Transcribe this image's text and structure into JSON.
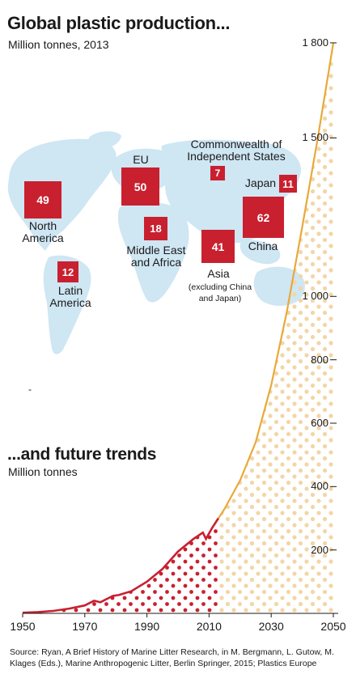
{
  "header": {
    "title": "Global plastic production...",
    "subtitle": "Million tonnes, 2013"
  },
  "regions": [
    {
      "name": "North America",
      "line1": "North",
      "line2": "America",
      "value": "49"
    },
    {
      "name": "Latin America",
      "line1": "Latin",
      "line2": "America",
      "value": "12"
    },
    {
      "name": "EU",
      "line1": "EU",
      "line2": "",
      "value": "50"
    },
    {
      "name": "Middle East and Africa",
      "line1": "Middle East",
      "line2": "and Africa",
      "value": "18"
    },
    {
      "name": "Commonwealth of Independent States",
      "line1": "Commonwealth of",
      "line2": "Independent States",
      "value": "7"
    },
    {
      "name": "Asia",
      "line1": "Asia",
      "line2": "(excluding China",
      "line3": "and Japan)",
      "value": "41"
    },
    {
      "name": "China",
      "line1": "China",
      "line2": "",
      "value": "62"
    },
    {
      "name": "Japan",
      "line1": "Japan",
      "line2": "",
      "value": "11"
    }
  ],
  "trends": {
    "title": "...and future trends",
    "subtitle": "Million tonnes"
  },
  "misc": {
    "dash": "-"
  },
  "colors": {
    "accent": "#c8202f",
    "projection": "#e8a93a",
    "map": "#cfe6f3"
  },
  "chart_data": {
    "type": "area",
    "ylim": [
      0,
      1850
    ],
    "xlim": [
      1950,
      2050
    ],
    "x_ticks": [
      "1950",
      "1970",
      "1990",
      "2010",
      "2030",
      "2050"
    ],
    "y_ticks": [
      "200",
      "400",
      "600",
      "800",
      "1 000",
      "1 500",
      "1 800"
    ],
    "y_tick_values": [
      200,
      400,
      600,
      800,
      1000,
      1500,
      1800
    ],
    "series": [
      {
        "style": "historical",
        "x": [
          1950,
          1955,
          1960,
          1965,
          1970,
          1973,
          1975,
          1977,
          1979,
          1981,
          1985,
          1990,
          1995,
          2000,
          2005,
          2008,
          2009,
          2011,
          2013
        ],
        "y": [
          2,
          4,
          8,
          15,
          25,
          40,
          35,
          45,
          55,
          58,
          70,
          100,
          140,
          195,
          235,
          255,
          235,
          270,
          300
        ]
      },
      {
        "style": "projection",
        "x": [
          2013,
          2015,
          2020,
          2025,
          2030,
          2035,
          2040,
          2045,
          2050
        ],
        "y": [
          300,
          330,
          420,
          540,
          720,
          950,
          1220,
          1500,
          1800
        ]
      }
    ]
  },
  "source": {
    "text": "Source: Ryan, A Brief History of Marine Litter Research, in M. Bergmann, L. Gutow, M. Klages (Eds.), Marine Anthropogenic Litter, Berlin Springer, 2015; Plastics Europe"
  }
}
